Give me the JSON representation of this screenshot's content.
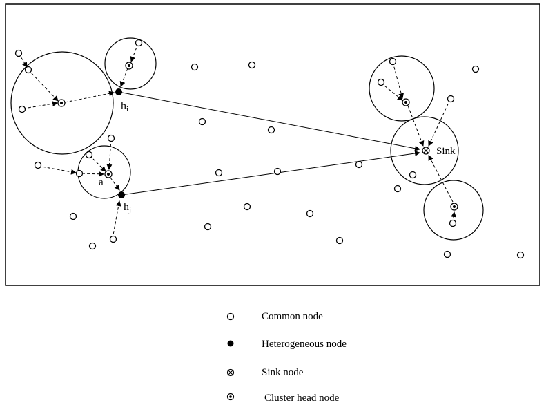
{
  "diagram": {
    "labels": {
      "hi_main": "h",
      "hi_sub": "i",
      "hj_main": "h",
      "hj_sub": "j",
      "a": "a",
      "sink": "Sink"
    }
  },
  "legend": {
    "items": [
      {
        "label": "Common node",
        "icon": "common-node-icon"
      },
      {
        "label": "Heterogeneous node",
        "icon": "heterogeneous-node-icon"
      },
      {
        "label": "Sink node",
        "icon": "sink-node-icon"
      },
      {
        "label": "Cluster head node",
        "icon": "cluster-head-node-icon"
      }
    ]
  }
}
